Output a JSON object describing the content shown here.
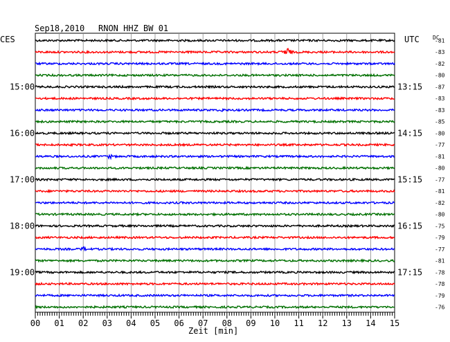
{
  "header": {
    "date": "Sep18,2010",
    "station": "RNON HHZ BW 01",
    "left_tz": "CES",
    "right_tz": "UTC",
    "offset_header": "DC"
  },
  "chart_data": {
    "type": "line",
    "title": "Sep18,2010   RNON HHZ BW 01",
    "xlabel": "Zeit [min]",
    "x_ticks": [
      "00",
      "01",
      "02",
      "03",
      "04",
      "05",
      "06",
      "07",
      "08",
      "09",
      "10",
      "11",
      "12",
      "13",
      "14",
      "15"
    ],
    "xlim": [
      0,
      15
    ],
    "grid": true,
    "left_hour_labels": [
      {
        "row": 4,
        "label": "15:00"
      },
      {
        "row": 8,
        "label": "16:00"
      },
      {
        "row": 12,
        "label": "17:00"
      },
      {
        "row": 16,
        "label": "18:00"
      },
      {
        "row": 20,
        "label": "19:00"
      }
    ],
    "right_hour_labels": [
      {
        "row": 4,
        "label": "13:15"
      },
      {
        "row": 8,
        "label": "14:15"
      },
      {
        "row": 12,
        "label": "15:15"
      },
      {
        "row": 16,
        "label": "16:15"
      },
      {
        "row": 20,
        "label": "17:15"
      }
    ],
    "trace_colors": [
      "#000000",
      "#ff0000",
      "#0000ff",
      "#007000"
    ],
    "offsets": [
      -81,
      -83,
      -82,
      -80,
      -87,
      -83,
      -83,
      -85,
      -80,
      -77,
      -81,
      -80,
      -77,
      -81,
      -82,
      -80,
      -75,
      -79,
      -77,
      -81,
      -78,
      -78,
      -79,
      -76
    ],
    "events": [
      {
        "row": 1,
        "minute": 10.5,
        "amplitude": 8
      },
      {
        "row": 6,
        "minute": 7.8,
        "amplitude": 3
      },
      {
        "row": 10,
        "minute": 3.1,
        "amplitude": 4
      },
      {
        "row": 18,
        "minute": 2.0,
        "amplitude": 4
      },
      {
        "row": 8,
        "minute": 13.2,
        "amplitude": 2
      }
    ]
  }
}
